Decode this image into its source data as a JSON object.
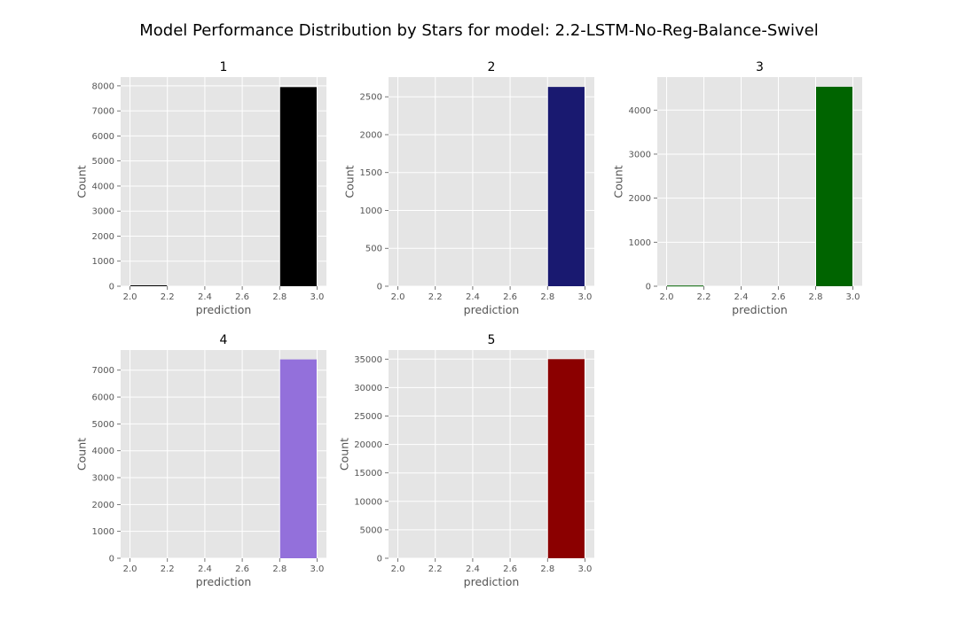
{
  "figure": {
    "title": "Model Performance Distribution by Stars for model: 2.2-LSTM-No-Reg-Balance-Swivel"
  },
  "style": {
    "axes_background": "#e5e5e5",
    "grid_color": "#ffffff",
    "text_color": "#555555"
  },
  "chart_data": [
    {
      "type": "bar",
      "title": "1",
      "xlabel": "prediction",
      "ylabel": "Count",
      "xlim": [
        1.95,
        3.05
      ],
      "ylim": [
        0,
        8350
      ],
      "xticks": [
        "2.0",
        "2.2",
        "2.4",
        "2.6",
        "2.8",
        "3.0"
      ],
      "yticks": [
        "0",
        "1000",
        "2000",
        "3000",
        "4000",
        "5000",
        "6000",
        "7000",
        "8000"
      ],
      "bins": [
        {
          "x0": 2.0,
          "x1": 2.2,
          "value": 35
        },
        {
          "x0": 2.8,
          "x1": 3.0,
          "value": 7950
        }
      ],
      "color": "#000000"
    },
    {
      "type": "bar",
      "title": "2",
      "xlabel": "prediction",
      "ylabel": "Count",
      "xlim": [
        1.95,
        3.05
      ],
      "ylim": [
        0,
        2760
      ],
      "xticks": [
        "2.0",
        "2.2",
        "2.4",
        "2.6",
        "2.8",
        "3.0"
      ],
      "yticks": [
        "0",
        "500",
        "1000",
        "1500",
        "2000",
        "2500"
      ],
      "bins": [
        {
          "x0": 2.8,
          "x1": 3.0,
          "value": 2630
        }
      ],
      "color": "#191970"
    },
    {
      "type": "bar",
      "title": "3",
      "xlabel": "prediction",
      "ylabel": "Count",
      "xlim": [
        1.95,
        3.05
      ],
      "ylim": [
        0,
        4750
      ],
      "xticks": [
        "2.0",
        "2.2",
        "2.4",
        "2.6",
        "2.8",
        "3.0"
      ],
      "yticks": [
        "0",
        "1000",
        "2000",
        "3000",
        "4000"
      ],
      "bins": [
        {
          "x0": 2.0,
          "x1": 2.2,
          "value": 15
        },
        {
          "x0": 2.8,
          "x1": 3.0,
          "value": 4530
        }
      ],
      "color": "#006400"
    },
    {
      "type": "bar",
      "title": "4",
      "xlabel": "prediction",
      "ylabel": "Count",
      "xlim": [
        1.95,
        3.05
      ],
      "ylim": [
        0,
        7750
      ],
      "xticks": [
        "2.0",
        "2.2",
        "2.4",
        "2.6",
        "2.8",
        "3.0"
      ],
      "yticks": [
        "0",
        "1000",
        "2000",
        "3000",
        "4000",
        "5000",
        "6000",
        "7000"
      ],
      "bins": [
        {
          "x0": 2.8,
          "x1": 3.0,
          "value": 7400
        }
      ],
      "color": "#9370db"
    },
    {
      "type": "bar",
      "title": "5",
      "xlabel": "prediction",
      "ylabel": "Count",
      "xlim": [
        1.95,
        3.05
      ],
      "ylim": [
        0,
        36600
      ],
      "xticks": [
        "2.0",
        "2.2",
        "2.4",
        "2.6",
        "2.8",
        "3.0"
      ],
      "yticks": [
        "0",
        "5000",
        "10000",
        "15000",
        "20000",
        "25000",
        "30000",
        "35000"
      ],
      "bins": [
        {
          "x0": 2.8,
          "x1": 3.0,
          "value": 35000
        }
      ],
      "color": "#8b0000"
    }
  ]
}
